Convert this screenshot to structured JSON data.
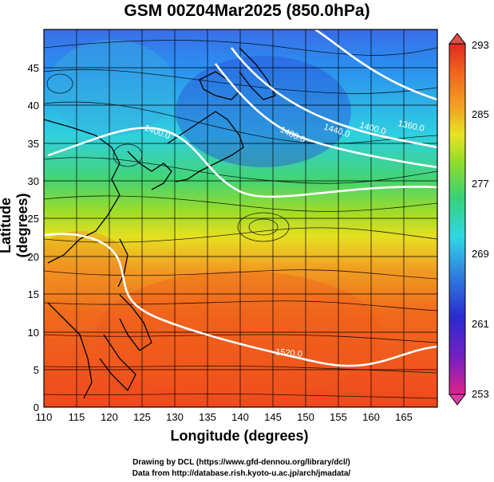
{
  "title": "GSM 00Z04Mar2025 (850.0hPa)",
  "axes": {
    "xlabel": "Longitude (degrees)",
    "ylabel": "Latitude  (degrees)",
    "xticks": [
      "110",
      "115",
      "120",
      "125",
      "130",
      "135",
      "140",
      "145",
      "150",
      "155",
      "160",
      "165"
    ],
    "yticks": [
      "0",
      "5",
      "10",
      "15",
      "20",
      "25",
      "30",
      "35",
      "40",
      "45"
    ],
    "xlim": [
      110,
      170
    ],
    "ylim": [
      0,
      50
    ]
  },
  "colorbar": {
    "labels": [
      "293",
      "285",
      "277",
      "269",
      "261",
      "253"
    ],
    "range": [
      253,
      293
    ],
    "colors": [
      "#e0238c",
      "#7a1fc0",
      "#2a2ad0",
      "#2f8fe0",
      "#2fd8e6",
      "#36d278",
      "#8fdc2a",
      "#e6e420",
      "#f2a222",
      "#f0641c",
      "#e02a22"
    ]
  },
  "contours": {
    "labels": [
      "1360.0",
      "1400.0",
      "1440.0",
      "1480.0",
      "1400.0",
      "1520.0"
    ],
    "color": "#ffffff"
  },
  "credits": {
    "line1": "Drawing by DCL (https://www.gfd-dennou.org/library/dcl/)",
    "line2": "Data from http://database.rish.kyoto-u.ac.jp/arch/jmadata/"
  }
}
